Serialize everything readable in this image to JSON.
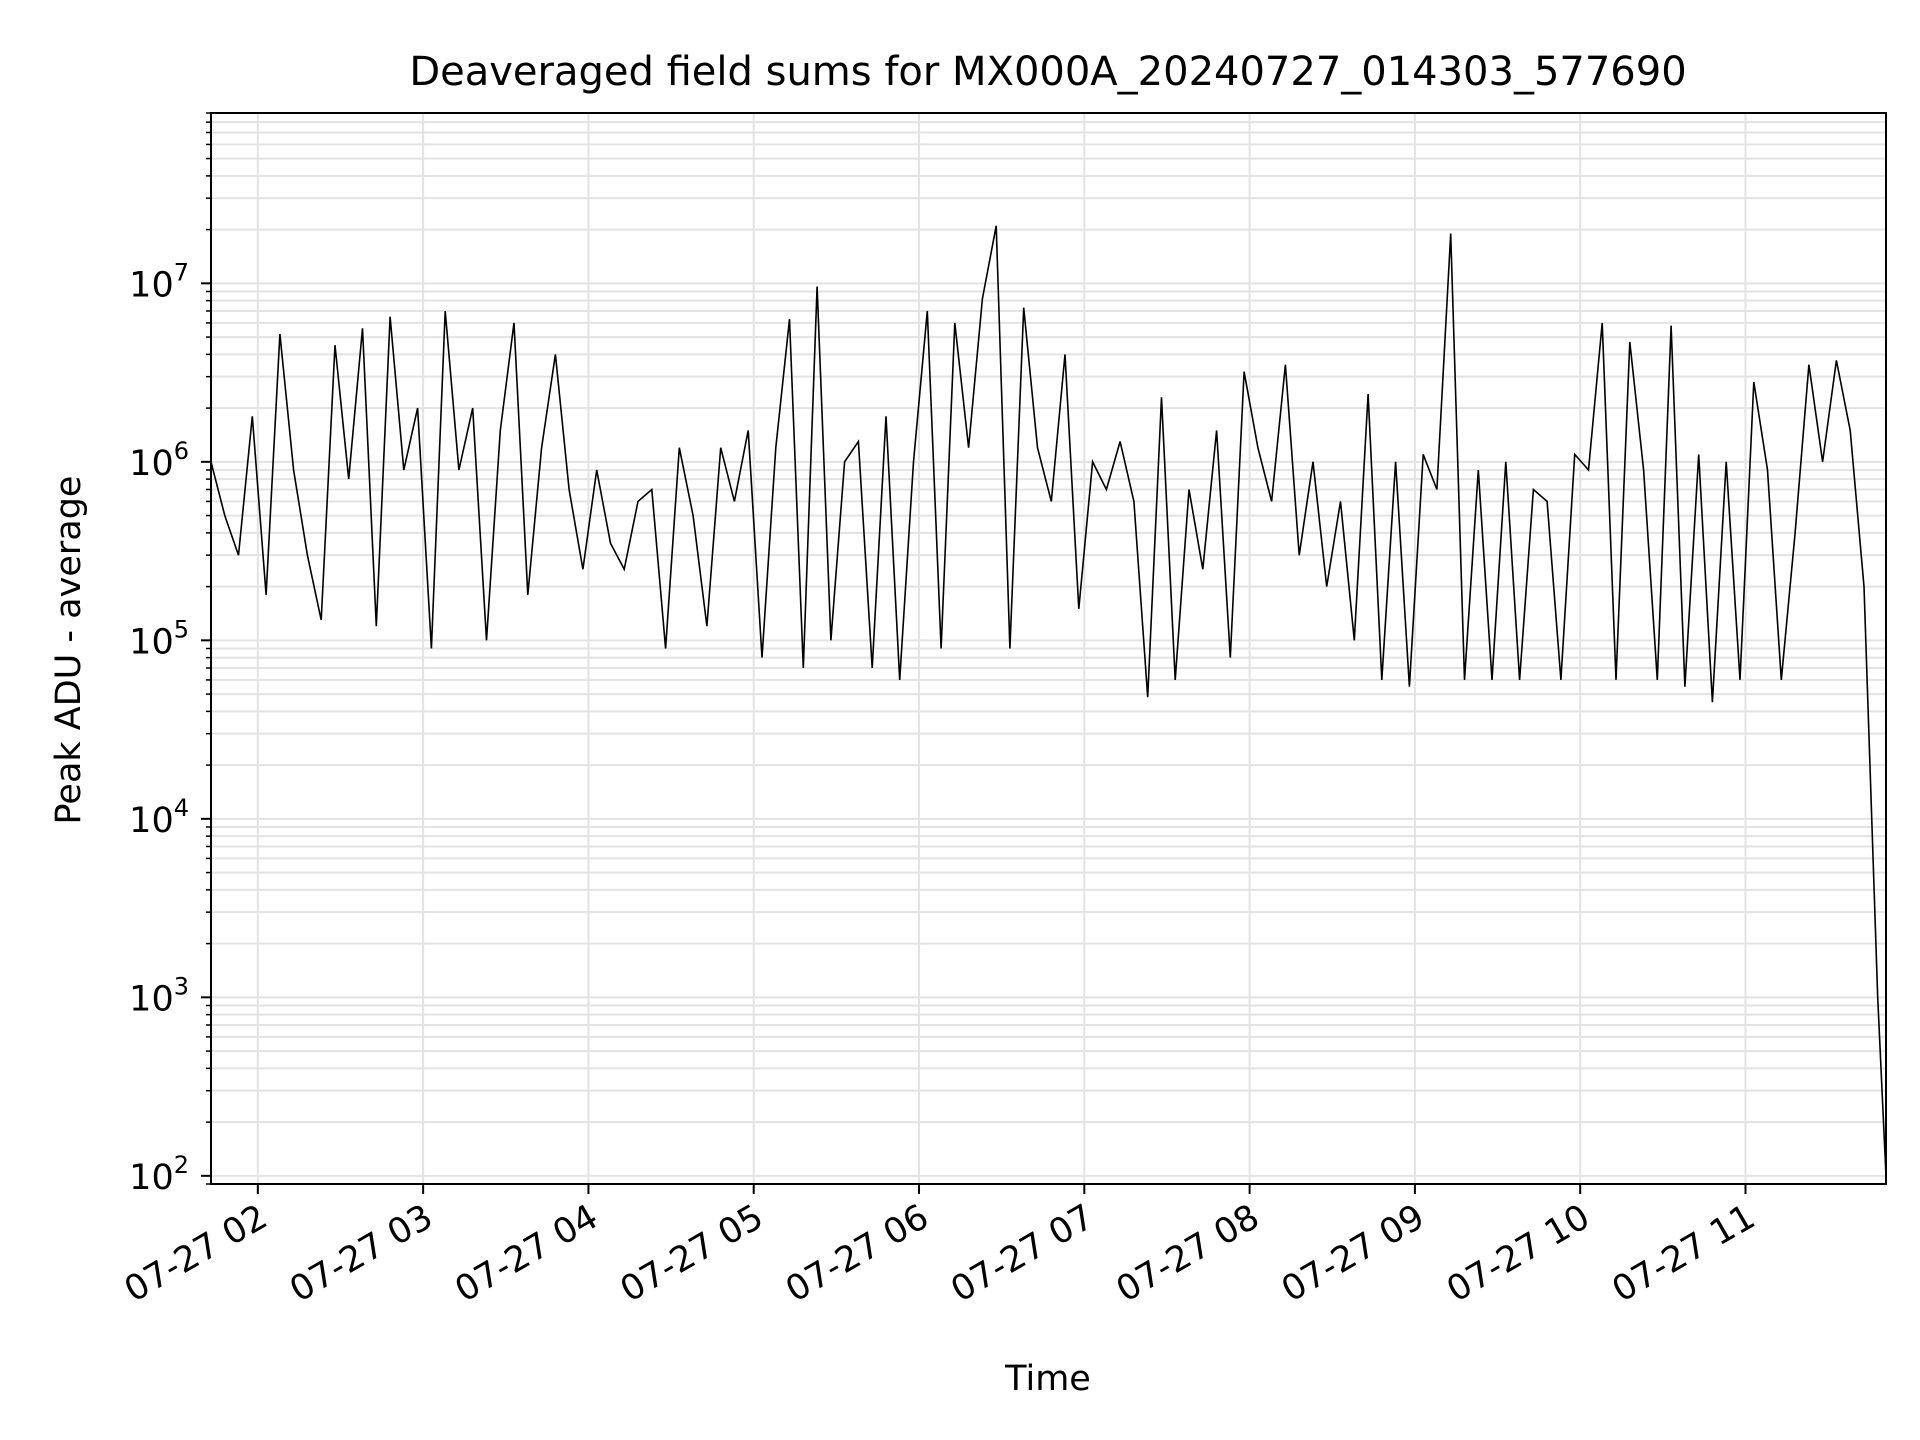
{
  "chart_data": {
    "type": "line",
    "title": "Deaveraged field sums for MX000A_20240727_014303_577690",
    "xlabel": "Time",
    "ylabel": "Peak ADU - average",
    "yscale": "log",
    "ylim": [
      90,
      90000000
    ],
    "xlim": [
      "2024-07-27T01:43:00",
      "2024-07-27T11:51:00"
    ],
    "grid": "major and minor",
    "x_ticks": [
      {
        "value": "2024-07-27T02:00:00",
        "label": "07-27 02"
      },
      {
        "value": "2024-07-27T03:00:00",
        "label": "07-27 03"
      },
      {
        "value": "2024-07-27T04:00:00",
        "label": "07-27 04"
      },
      {
        "value": "2024-07-27T05:00:00",
        "label": "07-27 05"
      },
      {
        "value": "2024-07-27T06:00:00",
        "label": "07-27 06"
      },
      {
        "value": "2024-07-27T07:00:00",
        "label": "07-27 07"
      },
      {
        "value": "2024-07-27T08:00:00",
        "label": "07-27 08"
      },
      {
        "value": "2024-07-27T09:00:00",
        "label": "07-27 09"
      },
      {
        "value": "2024-07-27T10:00:00",
        "label": "07-27 10"
      },
      {
        "value": "2024-07-27T11:00:00",
        "label": "07-27 11"
      }
    ],
    "y_ticks": [
      {
        "value": 100,
        "base": "10",
        "exp": "2"
      },
      {
        "value": 1000,
        "base": "10",
        "exp": "3"
      },
      {
        "value": 10000,
        "base": "10",
        "exp": "4"
      },
      {
        "value": 100000,
        "base": "10",
        "exp": "5"
      },
      {
        "value": 1000000,
        "base": "10",
        "exp": "6"
      },
      {
        "value": 10000000,
        "base": "10",
        "exp": "7"
      }
    ],
    "line_color": "#000000",
    "grid_color": "#e3e3e3",
    "series": [
      {
        "x": [
          "2024-07-27T01:43:00",
          "2024-07-27T01:48:00",
          "2024-07-27T01:53:00",
          "2024-07-27T01:58:00",
          "2024-07-27T02:03:00",
          "2024-07-27T02:08:00",
          "2024-07-27T02:13:00",
          "2024-07-27T02:18:00",
          "2024-07-27T02:23:00",
          "2024-07-27T02:28:00",
          "2024-07-27T02:33:00",
          "2024-07-27T02:38:00",
          "2024-07-27T02:43:00",
          "2024-07-27T02:48:00",
          "2024-07-27T02:53:00",
          "2024-07-27T02:58:00",
          "2024-07-27T03:03:00",
          "2024-07-27T03:08:00",
          "2024-07-27T03:13:00",
          "2024-07-27T03:18:00",
          "2024-07-27T03:23:00",
          "2024-07-27T03:28:00",
          "2024-07-27T03:33:00",
          "2024-07-27T03:38:00",
          "2024-07-27T03:43:00",
          "2024-07-27T03:48:00",
          "2024-07-27T03:53:00",
          "2024-07-27T03:58:00",
          "2024-07-27T04:03:00",
          "2024-07-27T04:08:00",
          "2024-07-27T04:13:00",
          "2024-07-27T04:18:00",
          "2024-07-27T04:23:00",
          "2024-07-27T04:28:00",
          "2024-07-27T04:33:00",
          "2024-07-27T04:38:00",
          "2024-07-27T04:43:00",
          "2024-07-27T04:48:00",
          "2024-07-27T04:53:00",
          "2024-07-27T04:58:00",
          "2024-07-27T05:03:00",
          "2024-07-27T05:08:00",
          "2024-07-27T05:13:00",
          "2024-07-27T05:18:00",
          "2024-07-27T05:23:00",
          "2024-07-27T05:28:00",
          "2024-07-27T05:33:00",
          "2024-07-27T05:38:00",
          "2024-07-27T05:43:00",
          "2024-07-27T05:48:00",
          "2024-07-27T05:53:00",
          "2024-07-27T05:58:00",
          "2024-07-27T06:03:00",
          "2024-07-27T06:08:00",
          "2024-07-27T06:13:00",
          "2024-07-27T06:18:00",
          "2024-07-27T06:23:00",
          "2024-07-27T06:28:00",
          "2024-07-27T06:33:00",
          "2024-07-27T06:38:00",
          "2024-07-27T06:43:00",
          "2024-07-27T06:48:00",
          "2024-07-27T06:53:00",
          "2024-07-27T06:58:00",
          "2024-07-27T07:03:00",
          "2024-07-27T07:08:00",
          "2024-07-27T07:13:00",
          "2024-07-27T07:18:00",
          "2024-07-27T07:23:00",
          "2024-07-27T07:28:00",
          "2024-07-27T07:33:00",
          "2024-07-27T07:38:00",
          "2024-07-27T07:43:00",
          "2024-07-27T07:48:00",
          "2024-07-27T07:53:00",
          "2024-07-27T07:58:00",
          "2024-07-27T08:03:00",
          "2024-07-27T08:08:00",
          "2024-07-27T08:13:00",
          "2024-07-27T08:18:00",
          "2024-07-27T08:23:00",
          "2024-07-27T08:28:00",
          "2024-07-27T08:33:00",
          "2024-07-27T08:38:00",
          "2024-07-27T08:43:00",
          "2024-07-27T08:48:00",
          "2024-07-27T08:53:00",
          "2024-07-27T08:58:00",
          "2024-07-27T09:03:00",
          "2024-07-27T09:08:00",
          "2024-07-27T09:13:00",
          "2024-07-27T09:18:00",
          "2024-07-27T09:23:00",
          "2024-07-27T09:28:00",
          "2024-07-27T09:33:00",
          "2024-07-27T09:38:00",
          "2024-07-27T09:43:00",
          "2024-07-27T09:48:00",
          "2024-07-27T09:53:00",
          "2024-07-27T09:58:00",
          "2024-07-27T10:03:00",
          "2024-07-27T10:08:00",
          "2024-07-27T10:13:00",
          "2024-07-27T10:18:00",
          "2024-07-27T10:23:00",
          "2024-07-27T10:28:00",
          "2024-07-27T10:33:00",
          "2024-07-27T10:38:00",
          "2024-07-27T10:43:00",
          "2024-07-27T10:48:00",
          "2024-07-27T10:53:00",
          "2024-07-27T10:58:00",
          "2024-07-27T11:03:00",
          "2024-07-27T11:08:00",
          "2024-07-27T11:13:00",
          "2024-07-27T11:18:00",
          "2024-07-27T11:23:00",
          "2024-07-27T11:28:00",
          "2024-07-27T11:33:00",
          "2024-07-27T11:38:00",
          "2024-07-27T11:43:00",
          "2024-07-27T11:48:00",
          "2024-07-27T11:51:00"
        ],
        "y": [
          1000000,
          500000,
          300000,
          1800000,
          180000,
          5200000,
          900000,
          300000,
          130000,
          4500000,
          800000,
          5600000,
          120000,
          6500000,
          900000,
          2000000,
          90000,
          7000000,
          900000,
          2000000,
          100000,
          1500000,
          6000000,
          180000,
          1200000,
          4000000,
          700000,
          250000,
          900000,
          350000,
          250000,
          600000,
          700000,
          90000,
          1200000,
          500000,
          120000,
          1200000,
          600000,
          1500000,
          80000,
          1200000,
          6300000,
          70000,
          9600000,
          100000,
          1000000,
          1300000,
          70000,
          1800000,
          60000,
          1000000,
          7000000,
          90000,
          6000000,
          1200000,
          8200000,
          21000000,
          90000,
          7300000,
          1200000,
          600000,
          4000000,
          150000,
          1000000,
          700000,
          1300000,
          600000,
          48000,
          2300000,
          60000,
          700000,
          250000,
          1500000,
          80000,
          3200000,
          1200000,
          600000,
          3500000,
          300000,
          1000000,
          200000,
          600000,
          100000,
          2400000,
          60000,
          1000000,
          55000,
          1100000,
          700000,
          19000000,
          60000,
          900000,
          60000,
          1000000,
          60000,
          700000,
          600000,
          60000,
          1100000,
          900000,
          6000000,
          60000,
          4700000,
          900000,
          60000,
          5800000,
          55000,
          1100000,
          45000,
          1000000,
          60000,
          2800000,
          900000,
          60000,
          400000,
          3500000,
          1000000,
          3700000,
          1500000,
          200000,
          1000,
          100
        ]
      }
    ]
  }
}
